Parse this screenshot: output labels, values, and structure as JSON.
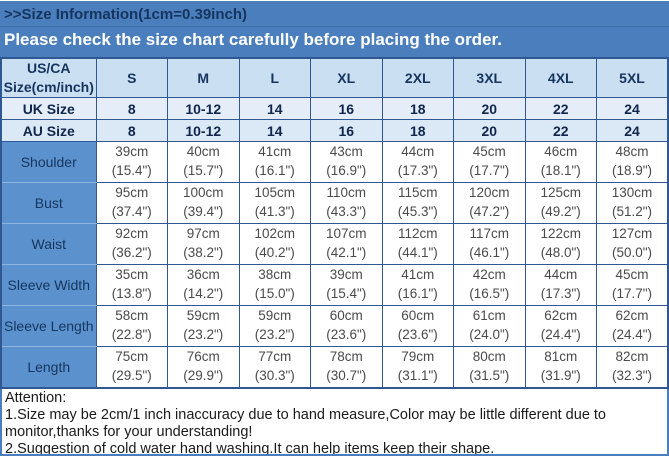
{
  "banner": {
    "title": ">>Size Information(1cm=0.39inch)",
    "subtitle": "Please check the size chart carefully before placing the order."
  },
  "colors": {
    "banner_bg": "#4a7ebc",
    "banner_title_color": "#16355e",
    "banner_subtitle_color": "#ffffff",
    "header_bg": "#cbdff2",
    "header_text": "#16355e",
    "uk_row_bg": "#e4edf8",
    "au_row_bg": "#dbe8f5",
    "label_col_bg": "#5b92cd",
    "border_color": "#2f5893",
    "data_text": "#4a4a4a"
  },
  "table": {
    "header": [
      "US/CA\nSize(cm/inch)",
      "S",
      "M",
      "L",
      "XL",
      "2XL",
      "3XL",
      "4XL",
      "5XL"
    ],
    "size_rows": [
      {
        "label": "UK Size",
        "values": [
          "8",
          "10-12",
          "14",
          "16",
          "18",
          "20",
          "22",
          "24"
        ]
      },
      {
        "label": "AU Size",
        "values": [
          "8",
          "10-12",
          "14",
          "16",
          "18",
          "20",
          "22",
          "24"
        ]
      }
    ],
    "measurement_rows": [
      {
        "label": "Shoulder",
        "cm": [
          "39cm",
          "40cm",
          "41cm",
          "43cm",
          "44cm",
          "45cm",
          "46cm",
          "48cm"
        ],
        "inch": [
          "(15.4\")",
          "(15.7\")",
          "(16.1\")",
          "(16.9\")",
          "(17.3\")",
          "(17.7\")",
          "(18.1\")",
          "(18.9\")"
        ]
      },
      {
        "label": "Bust",
        "cm": [
          "95cm",
          "100cm",
          "105cm",
          "110cm",
          "115cm",
          "120cm",
          "125cm",
          "130cm"
        ],
        "inch": [
          "(37.4\")",
          "(39.4\")",
          "(41.3\")",
          "(43.3\")",
          "(45.3\")",
          "(47.2\")",
          "(49.2\")",
          "(51.2\")"
        ]
      },
      {
        "label": "Waist",
        "cm": [
          "92cm",
          "97cm",
          "102cm",
          "107cm",
          "112cm",
          "117cm",
          "122cm",
          "127cm"
        ],
        "inch": [
          "(36.2\")",
          "(38.2\")",
          "(40.2\")",
          "(42.1\")",
          "(44.1\")",
          "(46.1\")",
          "(48.0\")",
          "(50.0\")"
        ]
      },
      {
        "label": "Sleeve Width",
        "cm": [
          "35cm",
          "36cm",
          "38cm",
          "39cm",
          "41cm",
          "42cm",
          "44cm",
          "45cm"
        ],
        "inch": [
          "(13.8\")",
          "(14.2\")",
          "(15.0\")",
          "(15.4\")",
          "(16.1\")",
          "(16.5\")",
          "(17.3\")",
          "(17.7\")"
        ]
      },
      {
        "label": "Sleeve Length",
        "cm": [
          "58cm",
          "59cm",
          "59cm",
          "60cm",
          "60cm",
          "61cm",
          "62cm",
          "62cm"
        ],
        "inch": [
          "(22.8\")",
          "(23.2\")",
          "(23.2\")",
          "(23.6\")",
          "(23.6\")",
          "(24.0\")",
          "(24.4\")",
          "(24.4\")"
        ]
      },
      {
        "label": "Length",
        "cm": [
          "75cm",
          "76cm",
          "77cm",
          "78cm",
          "79cm",
          "80cm",
          "81cm",
          "82cm"
        ],
        "inch": [
          "(29.5\")",
          "(29.9\")",
          "(30.3\")",
          "(30.7\")",
          "(31.1\")",
          "(31.5\")",
          "(31.9\")",
          "(32.3\")"
        ]
      }
    ]
  },
  "attention": {
    "title": "Attention:",
    "lines": [
      "1.Size may be 2cm/1 inch inaccuracy due to hand measure,Color may be little different due to monitor,thanks for your understanding!",
      "2.Suggestion of cold water hand washing.It can help items keep their shape."
    ]
  }
}
